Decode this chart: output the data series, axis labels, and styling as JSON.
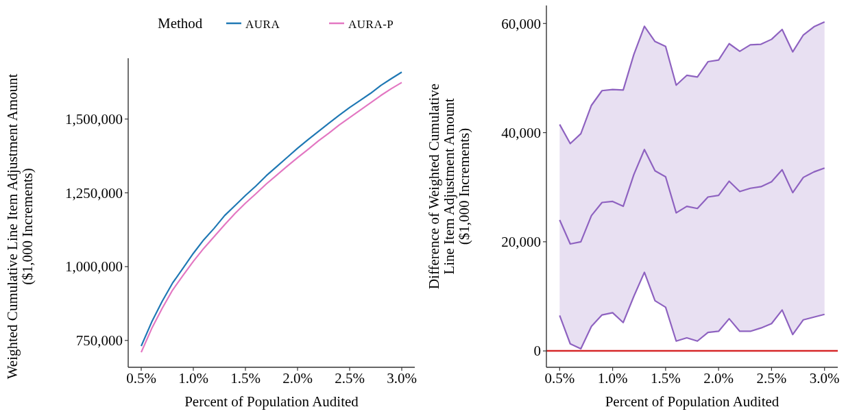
{
  "chart_data": [
    {
      "type": "line",
      "xlabel": "Percent of Population Audited",
      "ylabel": "Weighted Cumulative Line Item Adjustment Amount\n($1,000 Increments)",
      "legend": "top",
      "legend_title": "Method",
      "x": [
        0.5,
        0.6,
        0.7,
        0.8,
        0.9,
        1.0,
        1.1,
        1.2,
        1.3,
        1.4,
        1.5,
        1.6,
        1.7,
        1.8,
        1.9,
        2.0,
        2.1,
        2.2,
        2.3,
        2.4,
        2.5,
        2.6,
        2.7,
        2.8,
        2.9,
        3.0
      ],
      "series": [
        {
          "name": "AURA",
          "color": "#1f78b4",
          "values": [
            731000,
            812000,
            882000,
            944000,
            994000,
            1045000,
            1091000,
            1130000,
            1173000,
            1207000,
            1241000,
            1273000,
            1308000,
            1339000,
            1370000,
            1401000,
            1430000,
            1458000,
            1486000,
            1513000,
            1539000,
            1563000,
            1587000,
            1614000,
            1637000,
            1659000
          ]
        },
        {
          "name": "AURA-P",
          "color": "#e377c2",
          "values": [
            710000,
            790000,
            858000,
            920000,
            970000,
            1018000,
            1062000,
            1102000,
            1142000,
            1180000,
            1215000,
            1247000,
            1280000,
            1310000,
            1340000,
            1369000,
            1397000,
            1426000,
            1452000,
            1480000,
            1505000,
            1530000,
            1555000,
            1580000,
            1603000,
            1624000
          ]
        }
      ],
      "xlim": [
        0.375,
        3.125
      ],
      "xticks": [
        {
          "value": 0.5,
          "label": "0.5%"
        },
        {
          "value": 1.0,
          "label": "1.0%"
        },
        {
          "value": 1.5,
          "label": "1.5%"
        },
        {
          "value": 2.0,
          "label": "2.0%"
        },
        {
          "value": 2.5,
          "label": "2.5%"
        },
        {
          "value": 3.0,
          "label": "3.0%"
        }
      ],
      "ylim": [
        659000,
        1706000
      ],
      "yticks": [
        {
          "value": 750000,
          "label": "750,000"
        },
        {
          "value": 1000000,
          "label": "1,000,000"
        },
        {
          "value": 1250000,
          "label": "1,250,000"
        },
        {
          "value": 1500000,
          "label": "1,500,000"
        }
      ]
    },
    {
      "type": "line",
      "xlabel": "Percent of Population Audited",
      "ylabel": "Difference of Weighted Cumulative\nLine Item Adjustment Amount\n($1,000 Increments)",
      "legend": false,
      "x": [
        0.5,
        0.6,
        0.7,
        0.8,
        0.9,
        1.0,
        1.1,
        1.2,
        1.3,
        1.4,
        1.5,
        1.6,
        1.7,
        1.8,
        1.9,
        2.0,
        2.1,
        2.2,
        2.3,
        2.4,
        2.5,
        2.6,
        2.7,
        2.8,
        2.9,
        3.0
      ],
      "series": [
        {
          "color": "#8e62c0",
          "values": [
            24000,
            19600,
            20000,
            24800,
            27200,
            27400,
            26500,
            32300,
            36900,
            33000,
            31900,
            25300,
            26500,
            26100,
            28200,
            28500,
            31100,
            29200,
            29800,
            30100,
            31000,
            33200,
            29000,
            31800,
            32800,
            33500
          ],
          "lower": [
            6500,
            1300,
            400,
            4500,
            6600,
            7000,
            5200,
            10000,
            14400,
            9200,
            8000,
            1800,
            2400,
            1800,
            3400,
            3600,
            5900,
            3600,
            3600,
            4200,
            5000,
            7500,
            3000,
            5700,
            6200,
            6700
          ],
          "upper": [
            41500,
            38000,
            39800,
            45000,
            47700,
            47900,
            47800,
            54300,
            59500,
            56700,
            55800,
            48700,
            50500,
            50200,
            53000,
            53300,
            56300,
            54900,
            56100,
            56200,
            57100,
            58900,
            54800,
            57900,
            59400,
            60300
          ]
        },
        {
          "color": "#8e62c0",
          "values": [
            6500,
            1300,
            400,
            4500,
            6600,
            7000,
            5200,
            10000,
            14400,
            9200,
            8000,
            1800,
            2400,
            1800,
            3400,
            3600,
            5900,
            3600,
            3600,
            4200,
            5000,
            7500,
            3000,
            5700,
            6200,
            6700
          ]
        },
        {
          "color": "#8e62c0",
          "values": [
            41500,
            38000,
            39800,
            45000,
            47700,
            47900,
            47800,
            54300,
            59500,
            56700,
            55800,
            48700,
            50500,
            50200,
            53000,
            53300,
            56300,
            54900,
            56100,
            56200,
            57100,
            58900,
            54800,
            57900,
            59400,
            60300
          ]
        }
      ],
      "ref_lines": [
        {
          "axis": "y",
          "value": 0,
          "color": "#d62728"
        }
      ],
      "xlim": [
        0.375,
        3.125
      ],
      "xticks": [
        {
          "value": 0.5,
          "label": "0.5%"
        },
        {
          "value": 1.0,
          "label": "1.0%"
        },
        {
          "value": 1.5,
          "label": "1.5%"
        },
        {
          "value": 2.0,
          "label": "2.0%"
        },
        {
          "value": 2.5,
          "label": "2.5%"
        },
        {
          "value": 3.0,
          "label": "3.0%"
        }
      ],
      "ylim": [
        -3000,
        63300
      ],
      "yticks": [
        {
          "value": 0,
          "label": "0"
        },
        {
          "value": 20000,
          "label": "20,000"
        },
        {
          "value": 40000,
          "label": "40,000"
        },
        {
          "value": 60000,
          "label": "60,000"
        }
      ]
    }
  ]
}
